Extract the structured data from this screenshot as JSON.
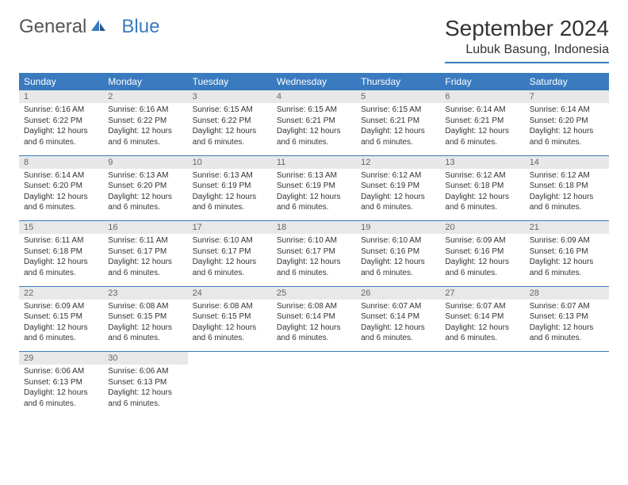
{
  "brand": {
    "name1": "General",
    "name2": "Blue"
  },
  "title": "September 2024",
  "location": "Lubuk Basung, Indonesia",
  "colors": {
    "accent": "#3a7bbf",
    "daynum_bg": "#e8e8e8"
  },
  "daysOfWeek": [
    "Sunday",
    "Monday",
    "Tuesday",
    "Wednesday",
    "Thursday",
    "Friday",
    "Saturday"
  ],
  "weeks": [
    [
      {
        "n": "1",
        "sr": "6:16 AM",
        "ss": "6:22 PM",
        "dl": "12 hours and 6 minutes."
      },
      {
        "n": "2",
        "sr": "6:16 AM",
        "ss": "6:22 PM",
        "dl": "12 hours and 6 minutes."
      },
      {
        "n": "3",
        "sr": "6:15 AM",
        "ss": "6:22 PM",
        "dl": "12 hours and 6 minutes."
      },
      {
        "n": "4",
        "sr": "6:15 AM",
        "ss": "6:21 PM",
        "dl": "12 hours and 6 minutes."
      },
      {
        "n": "5",
        "sr": "6:15 AM",
        "ss": "6:21 PM",
        "dl": "12 hours and 6 minutes."
      },
      {
        "n": "6",
        "sr": "6:14 AM",
        "ss": "6:21 PM",
        "dl": "12 hours and 6 minutes."
      },
      {
        "n": "7",
        "sr": "6:14 AM",
        "ss": "6:20 PM",
        "dl": "12 hours and 6 minutes."
      }
    ],
    [
      {
        "n": "8",
        "sr": "6:14 AM",
        "ss": "6:20 PM",
        "dl": "12 hours and 6 minutes."
      },
      {
        "n": "9",
        "sr": "6:13 AM",
        "ss": "6:20 PM",
        "dl": "12 hours and 6 minutes."
      },
      {
        "n": "10",
        "sr": "6:13 AM",
        "ss": "6:19 PM",
        "dl": "12 hours and 6 minutes."
      },
      {
        "n": "11",
        "sr": "6:13 AM",
        "ss": "6:19 PM",
        "dl": "12 hours and 6 minutes."
      },
      {
        "n": "12",
        "sr": "6:12 AM",
        "ss": "6:19 PM",
        "dl": "12 hours and 6 minutes."
      },
      {
        "n": "13",
        "sr": "6:12 AM",
        "ss": "6:18 PM",
        "dl": "12 hours and 6 minutes."
      },
      {
        "n": "14",
        "sr": "6:12 AM",
        "ss": "6:18 PM",
        "dl": "12 hours and 6 minutes."
      }
    ],
    [
      {
        "n": "15",
        "sr": "6:11 AM",
        "ss": "6:18 PM",
        "dl": "12 hours and 6 minutes."
      },
      {
        "n": "16",
        "sr": "6:11 AM",
        "ss": "6:17 PM",
        "dl": "12 hours and 6 minutes."
      },
      {
        "n": "17",
        "sr": "6:10 AM",
        "ss": "6:17 PM",
        "dl": "12 hours and 6 minutes."
      },
      {
        "n": "18",
        "sr": "6:10 AM",
        "ss": "6:17 PM",
        "dl": "12 hours and 6 minutes."
      },
      {
        "n": "19",
        "sr": "6:10 AM",
        "ss": "6:16 PM",
        "dl": "12 hours and 6 minutes."
      },
      {
        "n": "20",
        "sr": "6:09 AM",
        "ss": "6:16 PM",
        "dl": "12 hours and 6 minutes."
      },
      {
        "n": "21",
        "sr": "6:09 AM",
        "ss": "6:16 PM",
        "dl": "12 hours and 6 minutes."
      }
    ],
    [
      {
        "n": "22",
        "sr": "6:09 AM",
        "ss": "6:15 PM",
        "dl": "12 hours and 6 minutes."
      },
      {
        "n": "23",
        "sr": "6:08 AM",
        "ss": "6:15 PM",
        "dl": "12 hours and 6 minutes."
      },
      {
        "n": "24",
        "sr": "6:08 AM",
        "ss": "6:15 PM",
        "dl": "12 hours and 6 minutes."
      },
      {
        "n": "25",
        "sr": "6:08 AM",
        "ss": "6:14 PM",
        "dl": "12 hours and 6 minutes."
      },
      {
        "n": "26",
        "sr": "6:07 AM",
        "ss": "6:14 PM",
        "dl": "12 hours and 6 minutes."
      },
      {
        "n": "27",
        "sr": "6:07 AM",
        "ss": "6:14 PM",
        "dl": "12 hours and 6 minutes."
      },
      {
        "n": "28",
        "sr": "6:07 AM",
        "ss": "6:13 PM",
        "dl": "12 hours and 6 minutes."
      }
    ],
    [
      {
        "n": "29",
        "sr": "6:06 AM",
        "ss": "6:13 PM",
        "dl": "12 hours and 6 minutes."
      },
      {
        "n": "30",
        "sr": "6:06 AM",
        "ss": "6:13 PM",
        "dl": "12 hours and 6 minutes."
      },
      null,
      null,
      null,
      null,
      null
    ]
  ],
  "labels": {
    "sunrise": "Sunrise:",
    "sunset": "Sunset:",
    "daylight": "Daylight:"
  }
}
